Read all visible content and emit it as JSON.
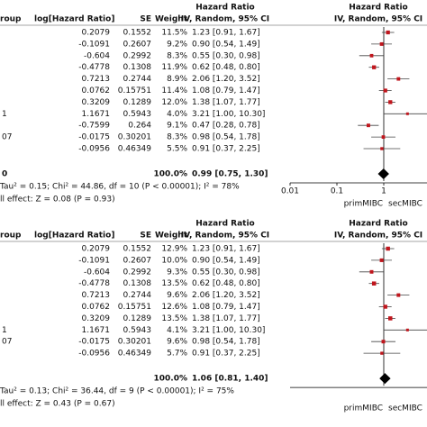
{
  "panels": [
    {
      "header": {
        "group": "roup",
        "loghr": "log[Hazard Ratio]",
        "se": "SE",
        "weight": "Weight",
        "hr_title": "Hazard Ratio",
        "hr_method": "IV, Random, 95% CI",
        "plot_title": "Hazard Ratio",
        "plot_method": "IV, Random, 95% CI"
      },
      "rows": [
        {
          "label": null,
          "loghr": "0.2079",
          "se": "0.1552",
          "weight": 11.5,
          "weight_label": "11.5%",
          "ci": "1.23 [0.91, 1.67]",
          "hr": 1.23,
          "lo": 0.91,
          "hi": 1.67
        },
        {
          "label": null,
          "loghr": "-0.1091",
          "se": "0.2607",
          "weight": 9.2,
          "weight_label": "9.2%",
          "ci": "0.90 [0.54, 1.49]",
          "hr": 0.9,
          "lo": 0.54,
          "hi": 1.49
        },
        {
          "label": null,
          "loghr": "-0.604",
          "se": "0.2992",
          "weight": 8.3,
          "weight_label": "8.3%",
          "ci": "0.55 [0.30, 0.98]",
          "hr": 0.55,
          "lo": 0.3,
          "hi": 0.98
        },
        {
          "label": null,
          "loghr": "-0.4778",
          "se": "0.1308",
          "weight": 11.9,
          "weight_label": "11.9%",
          "ci": "0.62 [0.48, 0.80]",
          "hr": 0.62,
          "lo": 0.48,
          "hi": 0.8
        },
        {
          "label": null,
          "loghr": "0.7213",
          "se": "0.2744",
          "weight": 8.9,
          "weight_label": "8.9%",
          "ci": "2.06 [1.20, 3.52]",
          "hr": 2.06,
          "lo": 1.2,
          "hi": 3.52
        },
        {
          "label": null,
          "loghr": "0.0762",
          "se": "0.15751",
          "weight": 11.4,
          "weight_label": "11.4%",
          "ci": "1.08 [0.79, 1.47]",
          "hr": 1.08,
          "lo": 0.79,
          "hi": 1.47
        },
        {
          "label": null,
          "loghr": "0.3209",
          "se": "0.1289",
          "weight": 12.0,
          "weight_label": "12.0%",
          "ci": "1.38 [1.07, 1.77]",
          "hr": 1.38,
          "lo": 1.07,
          "hi": 1.77
        },
        {
          "label": "1",
          "loghr": "1.1671",
          "se": "0.5943",
          "weight": 4.0,
          "weight_label": "4.0%",
          "ci": "3.21 [1.00, 10.30]",
          "hr": 3.21,
          "lo": 1.0,
          "hi": 10.3
        },
        {
          "label": null,
          "loghr": "-0.7599",
          "se": "0.264",
          "weight": 9.1,
          "weight_label": "9.1%",
          "ci": "0.47 [0.28, 0.78]",
          "hr": 0.47,
          "lo": 0.28,
          "hi": 0.78
        },
        {
          "label": "07",
          "loghr": "-0.0175",
          "se": "0.30201",
          "weight": 8.3,
          "weight_label": "8.3%",
          "ci": "0.98 [0.54, 1.78]",
          "hr": 0.98,
          "lo": 0.54,
          "hi": 1.78
        },
        {
          "label": null,
          "loghr": "-0.0956",
          "se": "0.46349",
          "weight": 5.5,
          "weight_label": "5.5%",
          "ci": "0.91 [0.37, 2.25]",
          "hr": 0.91,
          "lo": 0.37,
          "hi": 2.25
        }
      ],
      "total": {
        "label": "0",
        "weight_label": "100.0%",
        "ci": "0.99 [0.75, 1.30]",
        "hr": 0.99,
        "lo": 0.75,
        "hi": 1.3
      },
      "heterogeneity": "Tau² = 0.15; Chi² = 44.86, df = 10 (P < 0.00001); I² = 78%",
      "overall": "ll effect: Z = 0.08 (P = 0.93)",
      "axis": {
        "xlim": [
          0.01,
          100
        ],
        "xticks": [
          0.01,
          0.1,
          1
        ],
        "left": "primMIBC",
        "right": "secMIBC"
      }
    },
    {
      "header": {
        "group": "roup",
        "loghr": "log[Hazard Ratio]",
        "se": "SE",
        "weight": "Weight",
        "hr_title": "Hazard Ratio",
        "hr_method": "IV, Random, 95% CI",
        "plot_title": "Hazard Ratio",
        "plot_method": "IV, Random, 95% CI"
      },
      "rows": [
        {
          "label": null,
          "loghr": "0.2079",
          "se": "0.1552",
          "weight": 12.9,
          "weight_label": "12.9%",
          "ci": "1.23 [0.91, 1.67]",
          "hr": 1.23,
          "lo": 0.91,
          "hi": 1.67
        },
        {
          "label": null,
          "loghr": "-0.1091",
          "se": "0.2607",
          "weight": 10.0,
          "weight_label": "10.0%",
          "ci": "0.90 [0.54, 1.49]",
          "hr": 0.9,
          "lo": 0.54,
          "hi": 1.49
        },
        {
          "label": null,
          "loghr": "-0.604",
          "se": "0.2992",
          "weight": 9.3,
          "weight_label": "9.3%",
          "ci": "0.55 [0.30, 0.98]",
          "hr": 0.55,
          "lo": 0.3,
          "hi": 0.98
        },
        {
          "label": null,
          "loghr": "-0.4778",
          "se": "0.1308",
          "weight": 13.5,
          "weight_label": "13.5%",
          "ci": "0.62 [0.48, 0.80]",
          "hr": 0.62,
          "lo": 0.48,
          "hi": 0.8
        },
        {
          "label": null,
          "loghr": "0.7213",
          "se": "0.2744",
          "weight": 9.6,
          "weight_label": "9.6%",
          "ci": "2.06 [1.20, 3.52]",
          "hr": 2.06,
          "lo": 1.2,
          "hi": 3.52
        },
        {
          "label": null,
          "loghr": "0.0762",
          "se": "0.15751",
          "weight": 12.6,
          "weight_label": "12.6%",
          "ci": "1.08 [0.79, 1.47]",
          "hr": 1.08,
          "lo": 0.79,
          "hi": 1.47
        },
        {
          "label": null,
          "loghr": "0.3209",
          "se": "0.1289",
          "weight": 13.5,
          "weight_label": "13.5%",
          "ci": "1.38 [1.07, 1.77]",
          "hr": 1.38,
          "lo": 1.07,
          "hi": 1.77
        },
        {
          "label": "1",
          "loghr": "1.1671",
          "se": "0.5943",
          "weight": 4.1,
          "weight_label": "4.1%",
          "ci": "3.21 [1.00, 10.30]",
          "hr": 3.21,
          "lo": 1.0,
          "hi": 10.3
        },
        {
          "label": "07",
          "loghr": "-0.0175",
          "se": "0.30201",
          "weight": 9.6,
          "weight_label": "9.6%",
          "ci": "0.98 [0.54, 1.78]",
          "hr": 0.98,
          "lo": 0.54,
          "hi": 1.78
        },
        {
          "label": null,
          "loghr": "-0.0956",
          "se": "0.46349",
          "weight": 5.7,
          "weight_label": "5.7%",
          "ci": "0.91 [0.37, 2.25]",
          "hr": 0.91,
          "lo": 0.37,
          "hi": 2.25
        }
      ],
      "total": {
        "weight_label": "100.0%",
        "ci": "1.06 [0.81, 1.40]",
        "hr": 1.06,
        "lo": 0.81,
        "hi": 1.4
      },
      "heterogeneity": "Tau² = 0.13; Chi² = 36.44, df = 9 (P < 0.00001); I² = 75%",
      "overall": "ll effect: Z = 0.43 (P = 0.67)",
      "axis": {
        "xlim": [
          0.01,
          100
        ],
        "left": "primMIBC",
        "right": "secMIBC"
      }
    }
  ]
}
